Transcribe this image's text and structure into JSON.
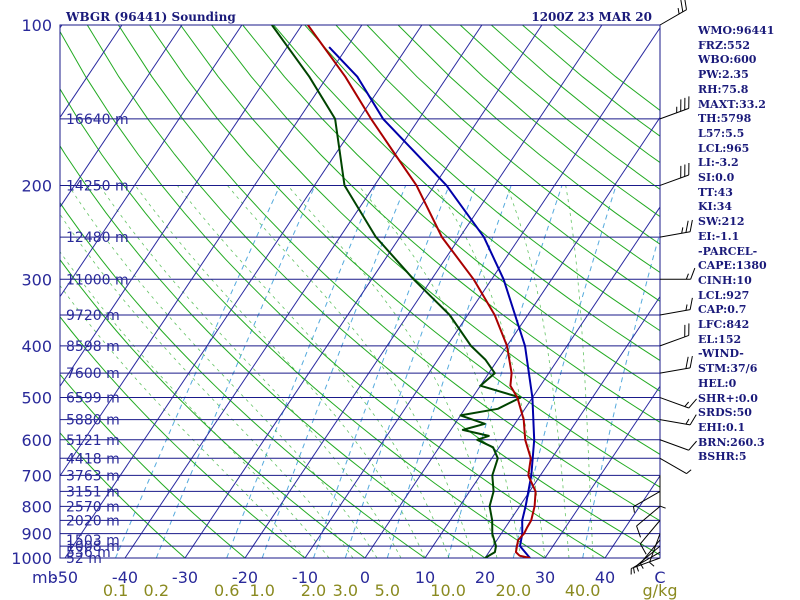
{
  "chart_data": {
    "type": "skew-t",
    "station": "WBGR (96441) Sounding",
    "time": "1200Z 23 MAR 20",
    "pressure_axis": {
      "ticks": [
        100,
        200,
        300,
        400,
        500,
        600,
        700,
        800,
        900,
        1000
      ],
      "range": [
        100,
        1000
      ],
      "scale": "log"
    },
    "temperature_axis": {
      "unit_left": "mb",
      "ticks": [
        "-50",
        "-40",
        "-30",
        "-20",
        "-10",
        "0",
        "10",
        "20",
        "30",
        "40",
        "C"
      ],
      "values": [
        -50,
        -40,
        -30,
        -20,
        -10,
        0,
        10,
        20,
        30,
        40
      ],
      "range": [
        -50,
        50
      ]
    },
    "mixing_ratio_axis": {
      "ticks": [
        "0.1",
        "0.2",
        "0.6",
        "1.0",
        "2.0",
        "3.0",
        "5.0",
        "10.0",
        "20.0",
        "40.0",
        "g/kg"
      ],
      "values": [
        0.1,
        0.2,
        0.6,
        1.0,
        2.0,
        3.0,
        5.0,
        10.0,
        20.0,
        40.0
      ]
    },
    "height_levels": [
      {
        "p": 1000,
        "label": "52 m"
      },
      {
        "p": 975,
        "label": "536 m"
      },
      {
        "p": 950,
        "label": "1008 m"
      },
      {
        "p": 925,
        "label": "1503 m"
      },
      {
        "p": 850,
        "label": "2020 m"
      },
      {
        "p": 800,
        "label": "2570 m"
      },
      {
        "p": 750,
        "label": "3151 m"
      },
      {
        "p": 700,
        "label": "3763 m"
      },
      {
        "p": 650,
        "label": "4418 m"
      },
      {
        "p": 600,
        "label": "5121 m"
      },
      {
        "p": 550,
        "label": "5880 m"
      },
      {
        "p": 500,
        "label": "6599 m"
      },
      {
        "p": 450,
        "label": "7600 m"
      },
      {
        "p": 400,
        "label": "8598 m"
      },
      {
        "p": 350,
        "label": "9720 m"
      },
      {
        "p": 300,
        "label": "11000 m"
      },
      {
        "p": 250,
        "label": "12480 m"
      },
      {
        "p": 200,
        "label": "14250 m"
      },
      {
        "p": 150,
        "label": "16640 m"
      }
    ],
    "temperature_profile": [
      [
        1000,
        27.5
      ],
      [
        990,
        25.5
      ],
      [
        975,
        24.5
      ],
      [
        950,
        24.0
      ],
      [
        925,
        23.5
      ],
      [
        900,
        23.8
      ],
      [
        875,
        23.6
      ],
      [
        850,
        23.5
      ],
      [
        800,
        22.5
      ],
      [
        750,
        21.0
      ],
      [
        700,
        18.0
      ],
      [
        650,
        16.5
      ],
      [
        600,
        13.5
      ],
      [
        550,
        11.0
      ],
      [
        500,
        7.5
      ],
      [
        475,
        5.0
      ],
      [
        450,
        3.8
      ],
      [
        400,
        0.0
      ],
      [
        350,
        -5.5
      ],
      [
        300,
        -13.0
      ],
      [
        250,
        -23.0
      ],
      [
        200,
        -33.0
      ],
      [
        175,
        -40.0
      ],
      [
        150,
        -48.0
      ],
      [
        125,
        -57.0
      ],
      [
        100,
        -69.0
      ]
    ],
    "dewpoint_profile": [
      [
        1000,
        20.0
      ],
      [
        975,
        21.0
      ],
      [
        950,
        20.5
      ],
      [
        900,
        18.5
      ],
      [
        850,
        17.0
      ],
      [
        800,
        15.0
      ],
      [
        750,
        14.0
      ],
      [
        700,
        12.0
      ],
      [
        650,
        11.0
      ],
      [
        620,
        9.0
      ],
      [
        600,
        5.5
      ],
      [
        590,
        7.0
      ],
      [
        575,
        2.0
      ],
      [
        560,
        5.0
      ],
      [
        540,
        0.0
      ],
      [
        525,
        5.5
      ],
      [
        500,
        8.0
      ],
      [
        475,
        0.0
      ],
      [
        450,
        1.0
      ],
      [
        425,
        -2.0
      ],
      [
        400,
        -6.0
      ],
      [
        350,
        -13.0
      ],
      [
        300,
        -23.0
      ],
      [
        250,
        -34.0
      ],
      [
        200,
        -45.0
      ],
      [
        150,
        -54.0
      ],
      [
        125,
        -63.0
      ],
      [
        100,
        -75.0
      ]
    ],
    "parcel_profile": [
      [
        1000,
        27.5
      ],
      [
        950,
        24.5
      ],
      [
        900,
        23.5
      ],
      [
        850,
        22.0
      ],
      [
        800,
        21.0
      ],
      [
        700,
        18.5
      ],
      [
        600,
        15.0
      ],
      [
        500,
        10.0
      ],
      [
        400,
        3.0
      ],
      [
        300,
        -8.0
      ],
      [
        250,
        -16.0
      ],
      [
        200,
        -28.0
      ],
      [
        150,
        -46.0
      ],
      [
        125,
        -55.0
      ],
      [
        110,
        -63.0
      ]
    ],
    "wind_barbs": [
      {
        "p": 1000,
        "dir": 250,
        "spd": 5
      },
      {
        "p": 975,
        "dir": 240,
        "spd": 5
      },
      {
        "p": 950,
        "dir": 230,
        "spd": 5
      },
      {
        "p": 925,
        "dir": 220,
        "spd": 5
      },
      {
        "p": 900,
        "dir": 200,
        "spd": 5
      },
      {
        "p": 850,
        "dir": 220,
        "spd": 10
      },
      {
        "p": 800,
        "dir": 230,
        "spd": 10
      },
      {
        "p": 750,
        "dir": 240,
        "spd": 5
      },
      {
        "p": 700,
        "dir": 180,
        "spd": 5
      },
      {
        "p": 650,
        "dir": 120,
        "spd": 5
      },
      {
        "p": 600,
        "dir": 110,
        "spd": 10
      },
      {
        "p": 550,
        "dir": 100,
        "spd": 15
      },
      {
        "p": 500,
        "dir": 110,
        "spd": 15
      },
      {
        "p": 450,
        "dir": 80,
        "spd": 20
      },
      {
        "p": 400,
        "dir": 70,
        "spd": 20
      },
      {
        "p": 350,
        "dir": 80,
        "spd": 15
      },
      {
        "p": 300,
        "dir": 90,
        "spd": 15
      },
      {
        "p": 250,
        "dir": 80,
        "spd": 25
      },
      {
        "p": 200,
        "dir": 70,
        "spd": 30
      },
      {
        "p": 150,
        "dir": 70,
        "spd": 35
      },
      {
        "p": 100,
        "dir": 60,
        "spd": 25
      }
    ],
    "colors": {
      "isobar": "#1a1a8a",
      "isotherm": "#2a2aa0",
      "dry_adiabat": "#22aa22",
      "moist_adiabat": "#22aa22",
      "mixing_ratio": "#55aadd",
      "temperature": "#aa0000",
      "dewpoint": "#004400",
      "parcel": "#0000aa",
      "barb": "#000000"
    }
  },
  "indices": [
    "WMO:96441",
    "FRZ:552",
    "WBO:600",
    "PW:2.35",
    "RH:75.8",
    "MAXT:33.2",
    "TH:5798",
    "L57:5.5",
    "LCL:965",
    "LI:-3.2",
    "SI:0.0",
    "TT:43",
    "KI:34",
    "SW:212",
    "EI:-1.1",
    "-PARCEL-",
    "CAPE:1380",
    "CINH:10",
    "LCL:927",
    "CAP:0.7",
    "LFC:842",
    "EL:152",
    "-WIND-",
    "STM:37/6",
    "HEL:0",
    "SHR+:0.0",
    "SRDS:50",
    "EHI:0.1",
    "BRN:260.3",
    "BSHR:5"
  ]
}
